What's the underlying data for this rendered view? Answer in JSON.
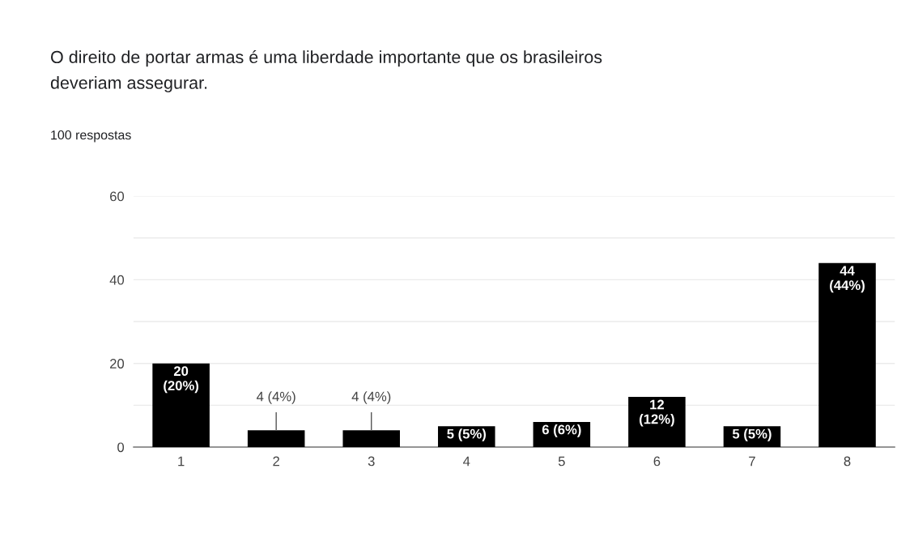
{
  "chart_data": {
    "type": "bar",
    "title": "O direito de portar armas é uma liberdade importante que os brasileiros\ndeveriam assegurar.",
    "subtitle": "100 respostas",
    "categories": [
      "1",
      "2",
      "3",
      "4",
      "5",
      "6",
      "7",
      "8"
    ],
    "values": [
      20,
      4,
      4,
      5,
      6,
      12,
      5,
      44
    ],
    "value_labels": [
      "20\n(20%)",
      "4 (4%)",
      "4 (4%)",
      "5 (5%)",
      "6 (6%)",
      "12\n(12%)",
      "5 (5%)",
      "44\n(44%)"
    ],
    "color": "#000000",
    "ylim": [
      0,
      60
    ],
    "yticks": [
      0,
      {
        "value": 10,
        "label": null
      },
      20,
      {
        "value": 30,
        "label": null
      },
      40,
      {
        "value": 50,
        "label": null
      },
      60
    ],
    "grid": "y"
  }
}
